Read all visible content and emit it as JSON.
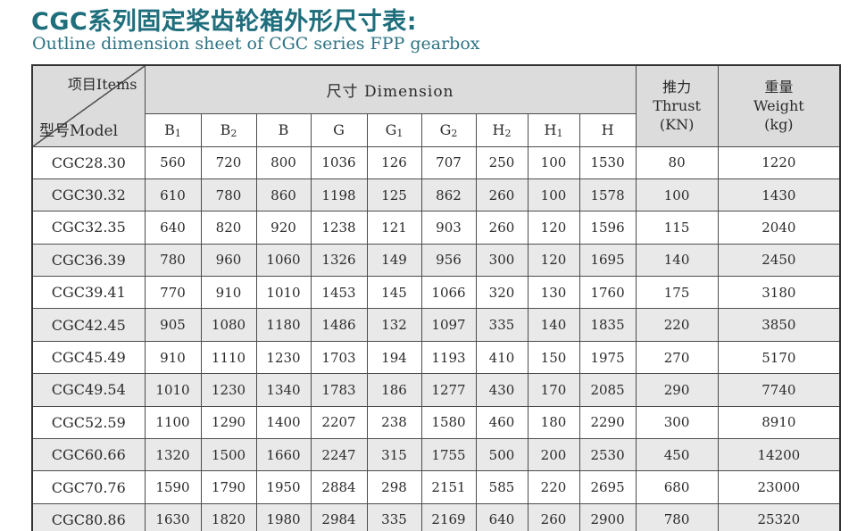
{
  "page": {
    "title": "CGC系列固定桨齿轮箱外形尺寸表:",
    "subtitle": "Outline dimension sheet of CGC series FPP gearbox"
  },
  "colors": {
    "title_teal": "#1e6e7c",
    "subtitle_teal": "#2d7484",
    "header_gray": "#dcdcdc",
    "stripe_gray": "#e9e9e9",
    "border_dark": "#333333",
    "text": "#2b2b2b"
  },
  "table": {
    "corner": {
      "top_right": "项目Items",
      "bottom_left": "型号Model"
    },
    "dimension_header": "尺寸  Dimension",
    "thrust_header": {
      "l1": "推力",
      "l2": "Thrust",
      "l3": "(KN)"
    },
    "weight_header": {
      "l1": "重量",
      "l2": "Weight",
      "l3": "(kg)"
    },
    "dimension_columns": [
      {
        "base": "B",
        "sub": "1"
      },
      {
        "base": "B",
        "sub": "2"
      },
      {
        "base": "B",
        "sub": ""
      },
      {
        "base": "G",
        "sub": ""
      },
      {
        "base": "G",
        "sub": "1"
      },
      {
        "base": "G",
        "sub": "2"
      },
      {
        "base": "H",
        "sub": "2"
      },
      {
        "base": "H",
        "sub": "1"
      },
      {
        "base": "H",
        "sub": ""
      }
    ],
    "rows": [
      {
        "model": "CGC28.30",
        "values": [
          "560",
          "720",
          "800",
          "1036",
          "126",
          "707",
          "250",
          "100",
          "1530",
          "80",
          "1220"
        ]
      },
      {
        "model": "CGC30.32",
        "values": [
          "610",
          "780",
          "860",
          "1198",
          "125",
          "862",
          "260",
          "100",
          "1578",
          "100",
          "1430"
        ]
      },
      {
        "model": "CGC32.35",
        "values": [
          "640",
          "820",
          "920",
          "1238",
          "121",
          "903",
          "260",
          "120",
          "1596",
          "115",
          "2040"
        ]
      },
      {
        "model": "CGC36.39",
        "values": [
          "780",
          "960",
          "1060",
          "1326",
          "149",
          "956",
          "300",
          "120",
          "1695",
          "140",
          "2450"
        ]
      },
      {
        "model": "CGC39.41",
        "values": [
          "770",
          "910",
          "1010",
          "1453",
          "145",
          "1066",
          "320",
          "130",
          "1760",
          "175",
          "3180"
        ]
      },
      {
        "model": "CGC42.45",
        "values": [
          "905",
          "1080",
          "1180",
          "1486",
          "132",
          "1097",
          "335",
          "140",
          "1835",
          "220",
          "3850"
        ]
      },
      {
        "model": "CGC45.49",
        "values": [
          "910",
          "1110",
          "1230",
          "1703",
          "194",
          "1193",
          "410",
          "150",
          "1975",
          "270",
          "5170"
        ]
      },
      {
        "model": "CGC49.54",
        "values": [
          "1010",
          "1230",
          "1340",
          "1783",
          "186",
          "1277",
          "430",
          "170",
          "2085",
          "290",
          "7740"
        ]
      },
      {
        "model": "CGC52.59",
        "values": [
          "1100",
          "1290",
          "1400",
          "2207",
          "238",
          "1580",
          "460",
          "180",
          "2290",
          "300",
          "8910"
        ]
      },
      {
        "model": "CGC60.66",
        "values": [
          "1320",
          "1500",
          "1660",
          "2247",
          "315",
          "1755",
          "500",
          "200",
          "2530",
          "450",
          "14200"
        ]
      },
      {
        "model": "CGC70.76",
        "values": [
          "1590",
          "1790",
          "1950",
          "2884",
          "298",
          "2151",
          "585",
          "220",
          "2695",
          "680",
          "23000"
        ]
      },
      {
        "model": "CGC80.86",
        "values": [
          "1630",
          "1820",
          "1980",
          "2984",
          "335",
          "2169",
          "640",
          "260",
          "2900",
          "780",
          "25320"
        ]
      }
    ]
  }
}
